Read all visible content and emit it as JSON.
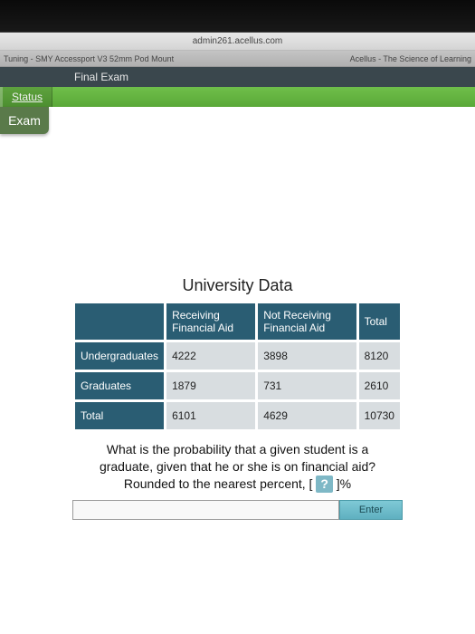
{
  "browser": {
    "url": "admin261.acellus.com",
    "tab_left": "Tuning - SMY Accessport V3 52mm Pod Mount",
    "tab_right": "Acellus - The Science of Learning"
  },
  "header": {
    "title": "Final Exam",
    "status_label": "Status",
    "exam_label": "Exam"
  },
  "table": {
    "title": "University Data",
    "columns": [
      "",
      "Receiving Financial Aid",
      "Not Receiving Financial Aid",
      "Total"
    ],
    "rows": [
      {
        "label": "Undergraduates",
        "cells": [
          "4222",
          "3898",
          "8120"
        ]
      },
      {
        "label": "Graduates",
        "cells": [
          "1879",
          "731",
          "2610"
        ]
      },
      {
        "label": "Total",
        "cells": [
          "6101",
          "4629",
          "10730"
        ]
      }
    ],
    "header_bg": "#2a5d73",
    "cell_bg": "#d8dde0"
  },
  "question": {
    "line1": "What is the probability that a given student is a",
    "line2": "graduate, given that he or she is on financial aid?",
    "line3_prefix": "Rounded to the nearest percent, [",
    "blank": "?",
    "line3_suffix": "]%"
  },
  "answer": {
    "input_value": "",
    "enter_label": "Enter"
  }
}
